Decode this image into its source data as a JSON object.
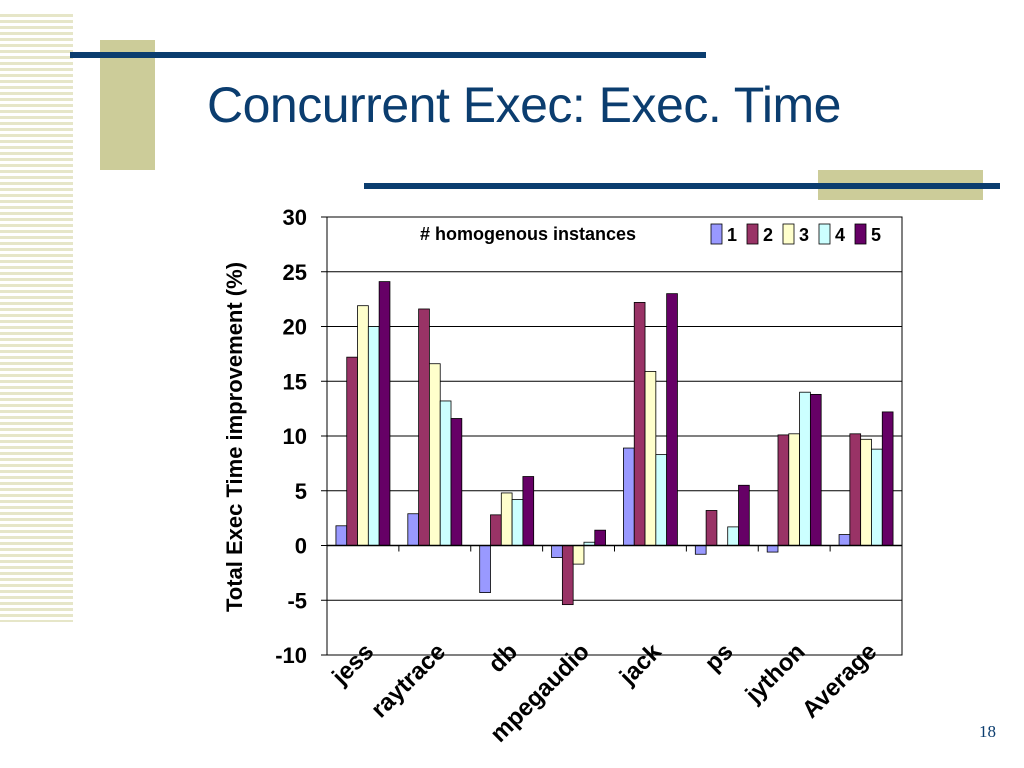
{
  "slide": {
    "title": "Concurrent Exec: Exec. Time",
    "page_number": "18"
  },
  "colors": {
    "title": "#0b3d6f",
    "accent_khaki": "#cccc99",
    "series": [
      "#9999ff",
      "#993366",
      "#ffffcc",
      "#ccffff",
      "#660066"
    ]
  },
  "chart_data": {
    "type": "bar",
    "categories": [
      "jess",
      "raytrace",
      "db",
      "mpegaudio",
      "jack",
      "ps",
      "jython",
      "Average"
    ],
    "legend_title": "# homogenous instances",
    "legend_position": "top-right",
    "series": [
      {
        "name": "1",
        "values": [
          1.8,
          2.9,
          -4.3,
          -1.1,
          8.9,
          -0.8,
          -0.6,
          1.0
        ]
      },
      {
        "name": "2",
        "values": [
          17.2,
          21.6,
          2.8,
          -5.4,
          22.2,
          3.2,
          10.1,
          10.2
        ]
      },
      {
        "name": "3",
        "values": [
          21.9,
          16.6,
          4.8,
          -1.7,
          15.9,
          0,
          10.2,
          9.7
        ]
      },
      {
        "name": "4",
        "values": [
          20.0,
          13.2,
          4.2,
          0.3,
          8.3,
          1.7,
          14.0,
          8.8
        ]
      },
      {
        "name": "5",
        "values": [
          24.1,
          11.6,
          6.3,
          1.4,
          23.0,
          5.5,
          13.8,
          12.2
        ]
      }
    ],
    "ylabel": "Total Exec Time improvement (%)",
    "xlabel": "",
    "ylim": [
      -10,
      30
    ],
    "yticks": [
      30,
      25,
      20,
      15,
      10,
      5,
      0,
      -5,
      -10
    ],
    "grid": true
  }
}
